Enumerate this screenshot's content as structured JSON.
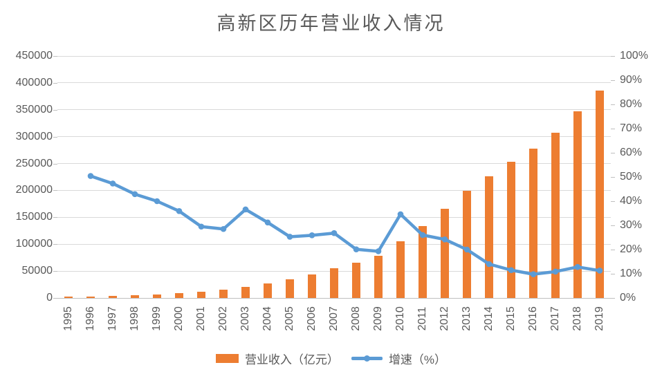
{
  "chart_data": {
    "type": "combo",
    "title": "高新区历年营业收入情况",
    "categories": [
      "1995",
      "1996",
      "1997",
      "1998",
      "1999",
      "2000",
      "2001",
      "2002",
      "2003",
      "2004",
      "2005",
      "2006",
      "2007",
      "2008",
      "2009",
      "2010",
      "2011",
      "2012",
      "2013",
      "2014",
      "2015",
      "2016",
      "2017",
      "2018",
      "2019"
    ],
    "series": [
      {
        "name": "营业收入（亿元）",
        "type": "bar",
        "axis": "left",
        "color": "#ED7D31",
        "values": [
          1530,
          2300,
          3388,
          4840,
          6775,
          9209,
          11928,
          15326,
          20939,
          27463,
          34416,
          43320,
          54926,
          65986,
          78707,
          105917,
          133444,
          165734,
          198902,
          226689,
          252705,
          277439,
          307571,
          346800,
          385881
        ]
      },
      {
        "name": "增速（%）",
        "type": "line",
        "axis": "right",
        "color": "#5B9BD5",
        "values": [
          null,
          50.4,
          47.3,
          42.9,
          40.0,
          35.9,
          29.5,
          28.5,
          36.6,
          31.2,
          25.3,
          25.9,
          26.8,
          20.1,
          19.3,
          34.6,
          26.0,
          24.2,
          20.0,
          14.0,
          11.5,
          9.8,
          10.9,
          12.8,
          11.3
        ]
      }
    ],
    "left_axis": {
      "min": 0,
      "max": 450000,
      "step": 50000,
      "tick_labels": [
        "0",
        "50000",
        "100000",
        "150000",
        "200000",
        "250000",
        "300000",
        "350000",
        "400000",
        "450000"
      ]
    },
    "right_axis": {
      "min": 0,
      "max": 100,
      "step": 10,
      "unit": "%",
      "tick_labels": [
        "0%",
        "10%",
        "20%",
        "30%",
        "40%",
        "50%",
        "60%",
        "70%",
        "80%",
        "90%",
        "100%"
      ]
    },
    "grid": true,
    "legend_position": "bottom",
    "colors": {
      "grid": "#D9D9D9",
      "axis_line": "#BFBFBF",
      "text": "#595959"
    }
  }
}
